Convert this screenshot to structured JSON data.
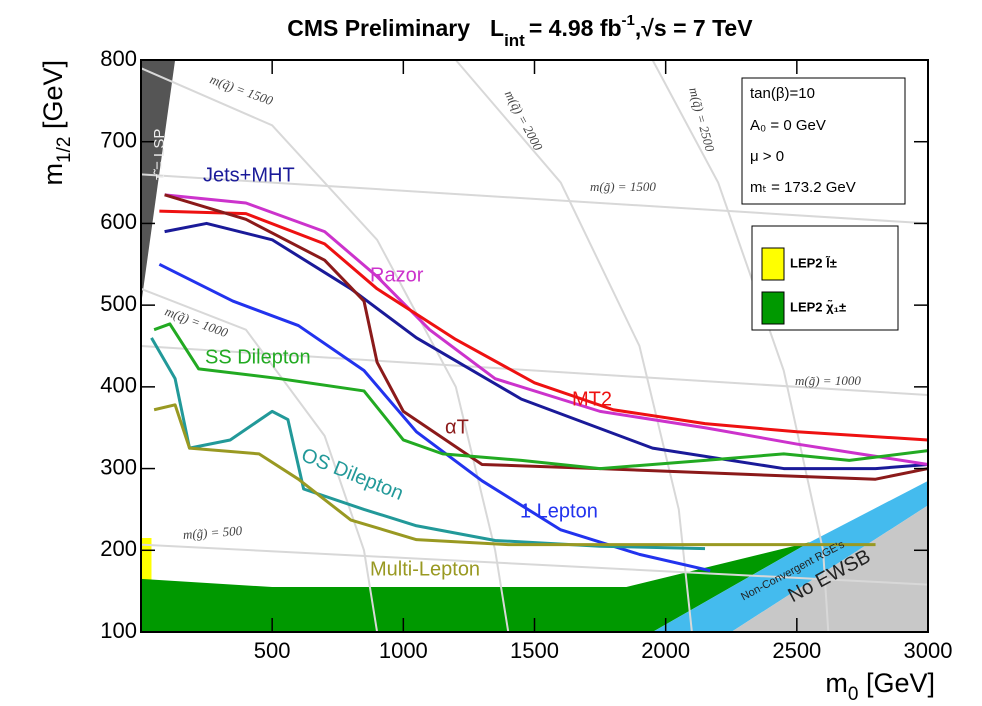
{
  "chart_data": {
    "type": "line",
    "title": "CMS Preliminary",
    "lumi_symbol": "L",
    "lumi_sub": "int",
    "lumi_value": "= 4.98 fb",
    "lumi_exp": "-1",
    "energy": ",√s = 7 TeV",
    "x_label": "m",
    "x_label_sub": "0",
    "x_label_unit": " [GeV]",
    "y_label": "m",
    "y_label_sub": "1/2",
    "y_label_unit": " [GeV]",
    "xlim": [
      0,
      3000
    ],
    "ylim": [
      100,
      800
    ],
    "xticks": [
      500,
      1000,
      1500,
      2000,
      2500,
      3000
    ],
    "yticks": [
      100,
      200,
      300,
      400,
      500,
      600,
      700,
      800
    ],
    "parameters": [
      "tan(β)=10",
      "A₀ = 0 GeV",
      "μ > 0",
      "mₜ = 173.2 GeV"
    ],
    "regions": [
      {
        "name": "LEP2 l̃±",
        "color": "#ffff00",
        "x": [
          0,
          40,
          40,
          0
        ],
        "y": [
          100,
          100,
          215,
          215
        ]
      },
      {
        "name": "LEP2 χ̃₁±",
        "color": "#009900",
        "x": [
          0,
          0,
          500,
          1850,
          2550,
          1950
        ],
        "y": [
          100,
          165,
          155,
          155,
          210,
          100
        ]
      },
      {
        "name": "Non-Convergent RGE's",
        "color": "#44bbee",
        "x": [
          1950,
          2550,
          3000,
          3000,
          2250
        ],
        "y": [
          100,
          210,
          285,
          255,
          100
        ]
      },
      {
        "name": "No EWSB",
        "color": "#c8c8c8",
        "x": [
          2250,
          3000,
          3000
        ],
        "y": [
          100,
          255,
          100
        ]
      },
      {
        "name": "τ̃ = LSP",
        "color": "#555555",
        "x": [
          0,
          0,
          130
        ],
        "y": [
          500,
          800,
          800
        ]
      }
    ],
    "contours": [
      {
        "name": "m(q̃) = 1500",
        "x": [
          0,
          500,
          900,
          1200,
          1350,
          1400
        ],
        "y": [
          790,
          720,
          580,
          400,
          200,
          100
        ]
      },
      {
        "name": "m(q̃) = 1000",
        "x": [
          0,
          400,
          700,
          850,
          900
        ],
        "y": [
          520,
          470,
          340,
          200,
          100
        ]
      },
      {
        "name": "m(q̃) = 2000",
        "x": [
          1200,
          1600,
          1900,
          2050,
          2100
        ],
        "y": [
          800,
          650,
          450,
          250,
          100
        ]
      },
      {
        "name": "m(q̃) = 2500",
        "x": [
          1950,
          2200,
          2450,
          2600,
          2620
        ],
        "y": [
          800,
          650,
          420,
          200,
          100
        ]
      },
      {
        "name": "m(g̃) = 1500",
        "x": [
          0,
          3000
        ],
        "y": [
          660,
          600
        ]
      },
      {
        "name": "m(g̃) = 1000",
        "x": [
          0,
          3000
        ],
        "y": [
          450,
          390
        ]
      },
      {
        "name": "m(g̃) = 500",
        "x": [
          0,
          3000
        ],
        "y": [
          207,
          158
        ]
      }
    ],
    "series": [
      {
        "name": "Jets+MHT",
        "color": "#1a1a99",
        "x": [
          90,
          250,
          500,
          800,
          1050,
          1450,
          1950,
          2450,
          2800,
          3000
        ],
        "y": [
          590,
          600,
          580,
          520,
          460,
          385,
          325,
          300,
          300,
          305
        ]
      },
      {
        "name": "Razor",
        "color": "#cc33cc",
        "x": [
          90,
          400,
          700,
          900,
          1100,
          1350,
          1750,
          2150,
          2500,
          3000
        ],
        "y": [
          635,
          625,
          590,
          535,
          470,
          410,
          370,
          350,
          330,
          305
        ]
      },
      {
        "name": "MT2",
        "color": "#ee1111",
        "x": [
          70,
          400,
          700,
          900,
          1200,
          1500,
          1800,
          2150,
          2500,
          3000
        ],
        "y": [
          615,
          612,
          575,
          520,
          458,
          405,
          372,
          355,
          345,
          335
        ]
      },
      {
        "name": "αT",
        "color": "#8b1a1a",
        "x": [
          90,
          400,
          700,
          850,
          900,
          1000,
          1300,
          1750,
          2300,
          2800,
          3000
        ],
        "y": [
          635,
          605,
          555,
          505,
          430,
          370,
          305,
          300,
          293,
          287,
          300
        ]
      },
      {
        "name": "1 Lepton",
        "color": "#2233ee",
        "x": [
          70,
          350,
          600,
          850,
          1050,
          1300,
          1600,
          1900,
          2170
        ],
        "y": [
          550,
          505,
          475,
          420,
          345,
          285,
          225,
          195,
          175
        ]
      },
      {
        "name": "SS Dilepton",
        "color": "#22aa22",
        "x": [
          50,
          110,
          220,
          530,
          850,
          1000,
          1150,
          1450,
          1750,
          2150,
          2450,
          2700,
          3000
        ],
        "y": [
          470,
          477,
          422,
          410,
          395,
          335,
          318,
          310,
          300,
          310,
          318,
          310,
          322
        ]
      },
      {
        "name": "OS Dilepton",
        "color": "#229999",
        "x": [
          40,
          130,
          185,
          340,
          500,
          560,
          620,
          850,
          1050,
          1350,
          1750,
          2150
        ],
        "y": [
          460,
          410,
          325,
          335,
          370,
          360,
          275,
          250,
          230,
          212,
          205,
          202
        ]
      },
      {
        "name": "Multi-Lepton",
        "color": "#999922",
        "x": [
          50,
          130,
          185,
          450,
          600,
          800,
          1050,
          1400,
          2150,
          2800
        ],
        "y": [
          372,
          378,
          325,
          318,
          287,
          237,
          213,
          207,
          207,
          207
        ]
      }
    ]
  }
}
